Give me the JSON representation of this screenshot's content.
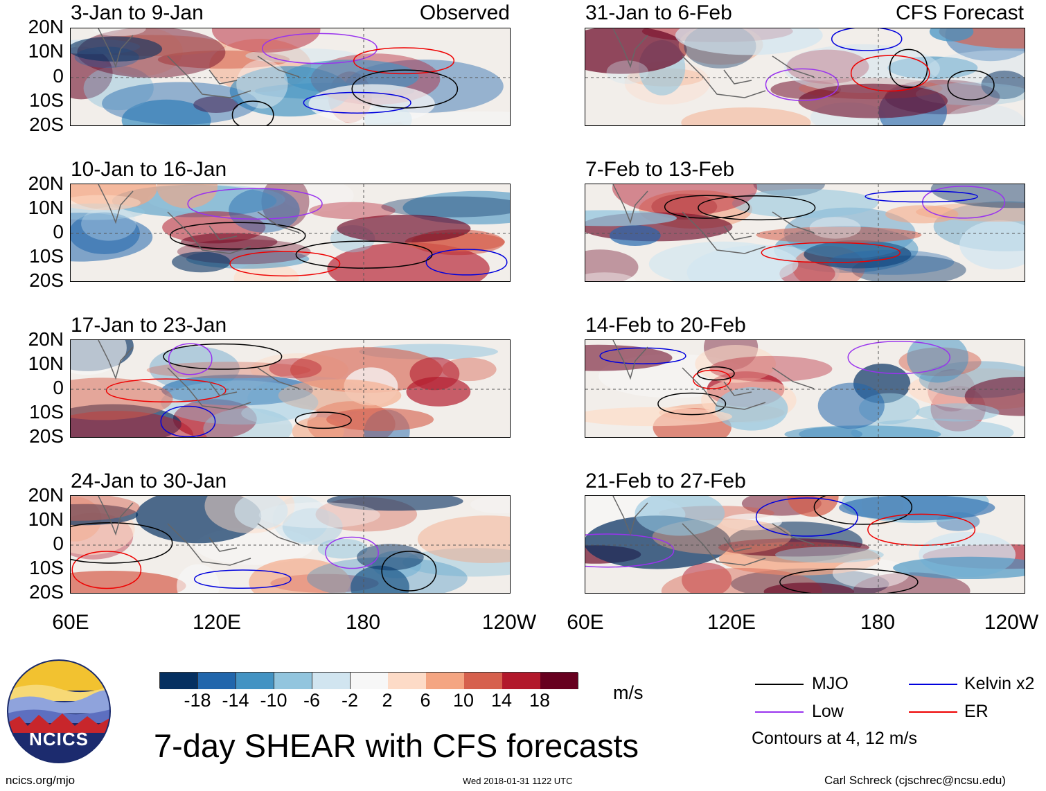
{
  "left_column_label": "Observed",
  "right_column_label": "CFS Forecast",
  "y_axis_labels": [
    "20N",
    "10N",
    "0",
    "10S",
    "20S"
  ],
  "x_axis_labels": [
    "60E",
    "120E",
    "180",
    "120W"
  ],
  "panels_left": [
    {
      "period": "3-Jan to 9-Jan"
    },
    {
      "period": "10-Jan to 16-Jan"
    },
    {
      "period": "17-Jan to 23-Jan"
    },
    {
      "period": "24-Jan to 30-Jan"
    }
  ],
  "panels_right": [
    {
      "period": "31-Jan to 6-Feb"
    },
    {
      "period": "7-Feb to 13-Feb"
    },
    {
      "period": "14-Feb to 20-Feb"
    },
    {
      "period": "21-Feb to 27-Feb"
    }
  ],
  "colorbar": {
    "unit": "m/s",
    "tick_labels": [
      "-18",
      "-14",
      "-10",
      "-6",
      "-2",
      "2",
      "6",
      "10",
      "14",
      "18"
    ],
    "colors": [
      "#053061",
      "#2166ac",
      "#4393c3",
      "#92c5de",
      "#d1e5f0",
      "#f7f7f7",
      "#fddbc7",
      "#f4a582",
      "#d6604d",
      "#b2182b",
      "#67001f"
    ]
  },
  "title": "7-day SHEAR with CFS forecasts",
  "logo_text": "NCICS",
  "legend": {
    "items": [
      {
        "label": "MJO",
        "color": "#000000"
      },
      {
        "label": "Kelvin x2",
        "color": "#0000dd"
      },
      {
        "label": "Low",
        "color": "#9933ee"
      },
      {
        "label": "ER",
        "color": "#ee0000"
      }
    ],
    "note": "Contours at 4, 12 m/s"
  },
  "footer": {
    "url": "ncics.org/mjo",
    "timestamp": "Wed 2018-01-31 1122 UTC",
    "author": "Carl Schreck (cjschrec@ncsu.edu)"
  }
}
